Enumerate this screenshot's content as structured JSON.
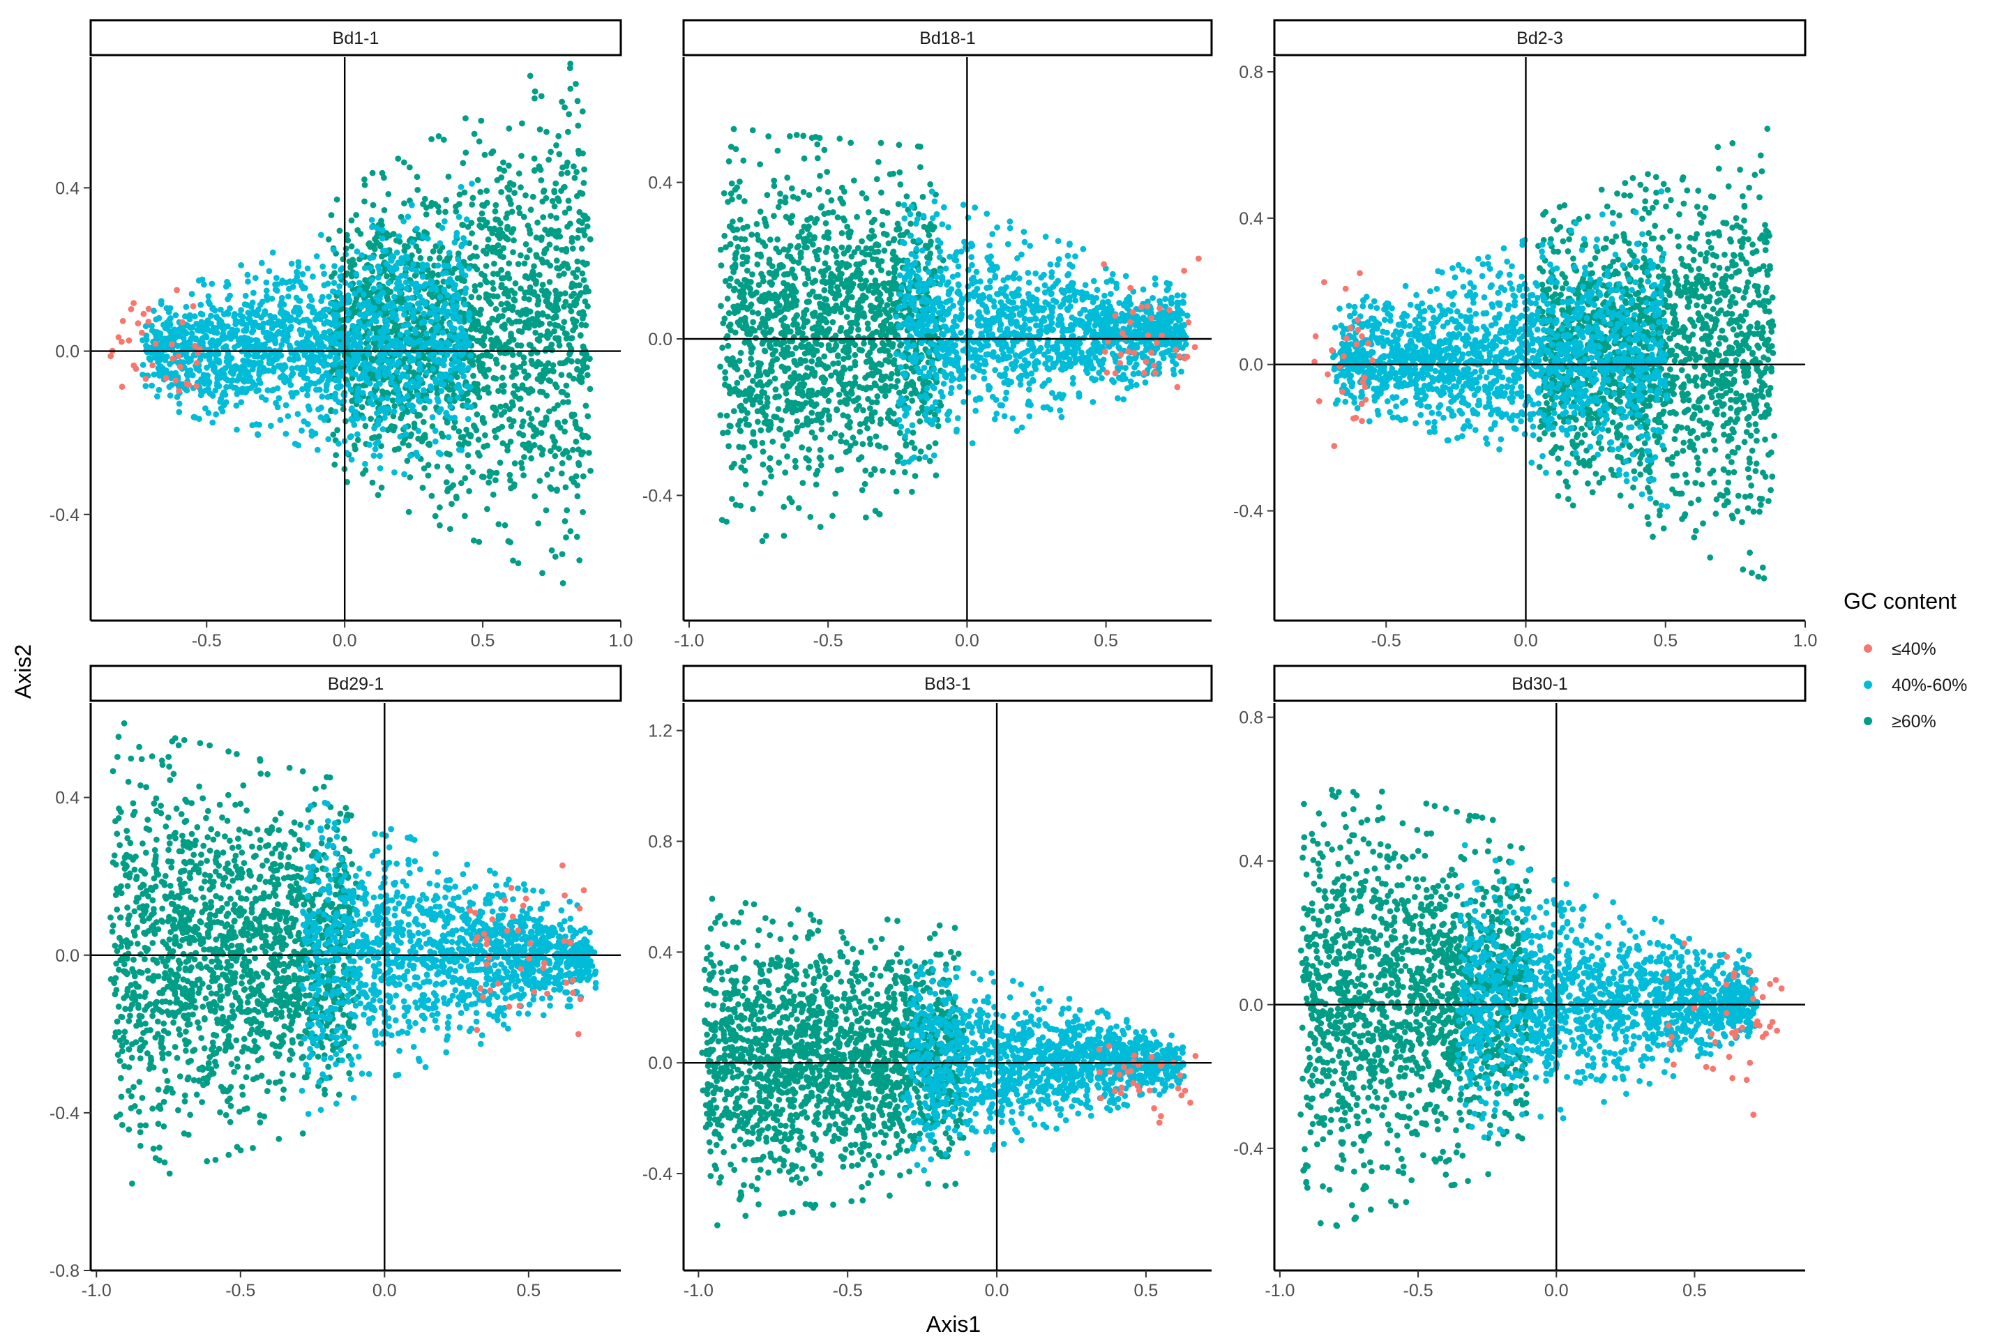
{
  "chart_data": {
    "type": "scatter",
    "layout": "faceted 2x3",
    "xlabel": "Axis1",
    "ylabel": "Axis2",
    "legend": {
      "title": "GC content",
      "position": "right",
      "entries": [
        {
          "label": "≤40%",
          "color": "#F8766D"
        },
        {
          "label": "40%-60%",
          "color": "#00BCD8"
        },
        {
          "label": "≥60%",
          "color": "#009E87"
        }
      ]
    },
    "panels": [
      {
        "title": "Bd1-1",
        "xlim": [
          -0.92,
          1.0
        ],
        "ylim": [
          -0.66,
          0.72
        ],
        "xticks": [
          -0.5,
          0.0,
          0.5,
          1.0
        ],
        "xtick_labels": [
          "-0.5",
          "0.0",
          "0.5",
          "1.0"
        ],
        "yticks": [
          -0.4,
          0.0,
          0.4
        ],
        "ytick_labels": [
          "-0.4",
          "0.0",
          "0.4"
        ],
        "clusters": [
          {
            "series": "≥60%",
            "x_range": [
              -0.05,
              0.88
            ],
            "y_at_left": [
              -0.28,
              0.34
            ],
            "y_at_right": [
              -0.55,
              0.7
            ],
            "density": 1.4
          },
          {
            "series": "40%-60%",
            "x_range": [
              -0.72,
              0.45
            ],
            "y_at_left": [
              -0.12,
              0.12
            ],
            "y_at_right": [
              -0.32,
              0.38
            ],
            "density": 1.0
          },
          {
            "series": "≤40%",
            "x_range": [
              -0.84,
              -0.52
            ],
            "y_at_left": [
              -0.14,
              0.18
            ],
            "y_at_right": [
              -0.2,
              0.2
            ],
            "density": 0.05
          }
        ]
      },
      {
        "title": "Bd18-1",
        "xlim": [
          -1.02,
          0.88
        ],
        "ylim": [
          -0.72,
          0.72
        ],
        "xticks": [
          -1.0,
          -0.5,
          0.0,
          0.5
        ],
        "xtick_labels": [
          "-1.0",
          "-0.5",
          "0.0",
          "0.5"
        ],
        "yticks": [
          -0.4,
          0.0,
          0.4
        ],
        "ytick_labels": [
          "-0.4",
          "0.0",
          "0.4"
        ],
        "clusters": [
          {
            "series": "≥60%",
            "x_range": [
              -0.88,
              -0.1
            ],
            "y_at_left": [
              -0.5,
              0.5
            ],
            "y_at_right": [
              -0.38,
              0.45
            ],
            "density": 1.4
          },
          {
            "series": "40%-60%",
            "x_range": [
              -0.25,
              0.78
            ],
            "y_at_left": [
              -0.3,
              0.38
            ],
            "y_at_right": [
              -0.1,
              0.12
            ],
            "density": 1.0
          },
          {
            "series": "≤40%",
            "x_range": [
              0.5,
              0.84
            ],
            "y_at_left": [
              -0.18,
              0.2
            ],
            "y_at_right": [
              -0.22,
              0.22
            ],
            "density": 0.05
          }
        ]
      },
      {
        "title": "Bd2-3",
        "xlim": [
          -0.9,
          1.0
        ],
        "ylim": [
          -0.7,
          0.84
        ],
        "xticks": [
          -0.5,
          0.0,
          0.5,
          1.0
        ],
        "xtick_labels": [
          "-0.5",
          "0.0",
          "0.5",
          "1.0"
        ],
        "yticks": [
          -0.4,
          0.0,
          0.4,
          0.8
        ],
        "ytick_labels": [
          "-0.4",
          "0.0",
          "0.4",
          "0.8"
        ],
        "clusters": [
          {
            "series": "≥60%",
            "x_range": [
              0.05,
              0.88
            ],
            "y_at_left": [
              -0.32,
              0.38
            ],
            "y_at_right": [
              -0.55,
              0.6
            ],
            "density": 1.4
          },
          {
            "series": "40%-60%",
            "x_range": [
              -0.68,
              0.5
            ],
            "y_at_left": [
              -0.12,
              0.14
            ],
            "y_at_right": [
              -0.36,
              0.44
            ],
            "density": 1.0
          },
          {
            "series": "≤40%",
            "x_range": [
              -0.76,
              -0.55
            ],
            "y_at_left": [
              -0.2,
              0.2
            ],
            "y_at_right": [
              -0.22,
              0.24
            ],
            "density": 0.05
          }
        ]
      },
      {
        "title": "Bd29-1",
        "xlim": [
          -1.02,
          0.82
        ],
        "ylim": [
          -0.8,
          0.64
        ],
        "xticks": [
          -1.0,
          -0.5,
          0.0,
          0.5
        ],
        "xtick_labels": [
          "-1.0",
          "-0.5",
          "0.0",
          "0.5"
        ],
        "yticks": [
          -0.8,
          -0.4,
          0.0,
          0.4
        ],
        "ytick_labels": [
          "-0.8",
          "-0.4",
          "0.0",
          "0.4"
        ],
        "clusters": [
          {
            "series": "≥60%",
            "x_range": [
              -0.94,
              -0.1
            ],
            "y_at_left": [
              -0.55,
              0.55
            ],
            "y_at_right": [
              -0.38,
              0.4
            ],
            "density": 1.4
          },
          {
            "series": "40%-60%",
            "x_range": [
              -0.28,
              0.72
            ],
            "y_at_left": [
              -0.38,
              0.38
            ],
            "y_at_right": [
              -0.1,
              0.1
            ],
            "density": 1.0
          },
          {
            "series": "≤40%",
            "x_range": [
              0.3,
              0.7
            ],
            "y_at_left": [
              -0.22,
              0.24
            ],
            "y_at_right": [
              -0.22,
              0.26
            ],
            "density": 0.05
          }
        ]
      },
      {
        "title": "Bd3-1",
        "xlim": [
          -1.05,
          0.72
        ],
        "ylim": [
          -0.75,
          1.3
        ],
        "xticks": [
          -1.0,
          -0.5,
          0.0,
          0.5
        ],
        "xtick_labels": [
          "-1.0",
          "-0.5",
          "0.0",
          "0.5"
        ],
        "yticks": [
          -0.4,
          0.0,
          0.4,
          0.8,
          1.2
        ],
        "ytick_labels": [
          "-0.4",
          "0.0",
          "0.4",
          "0.8",
          "1.2"
        ],
        "clusters": [
          {
            "series": "≥60%",
            "x_range": [
              -0.98,
              -0.12
            ],
            "y_at_left": [
              -0.55,
              0.55
            ],
            "y_at_right": [
              -0.4,
              0.45
            ],
            "density": 1.4
          },
          {
            "series": "40%-60%",
            "x_range": [
              -0.3,
              0.62
            ],
            "y_at_left": [
              -0.38,
              0.4
            ],
            "y_at_right": [
              -0.08,
              0.08
            ],
            "density": 1.0
          },
          {
            "series": "≤40%",
            "x_range": [
              0.35,
              0.66
            ],
            "y_at_left": [
              -0.2,
              0.08
            ],
            "y_at_right": [
              -0.2,
              0.1
            ],
            "density": 0.04
          }
        ]
      },
      {
        "title": "Bd30-1",
        "xlim": [
          -1.02,
          0.9
        ],
        "ylim": [
          -0.74,
          0.84
        ],
        "xticks": [
          -1.0,
          -0.5,
          0.0,
          0.5
        ],
        "xtick_labels": [
          "-1.0",
          "-0.5",
          "0.0",
          "0.5"
        ],
        "yticks": [
          -0.4,
          0.0,
          0.4,
          0.8
        ],
        "ytick_labels": [
          "-0.4",
          "0.0",
          "0.4",
          "0.8"
        ],
        "clusters": [
          {
            "series": "≥60%",
            "x_range": [
              -0.92,
              -0.1
            ],
            "y_at_left": [
              -0.6,
              0.6
            ],
            "y_at_right": [
              -0.4,
              0.45
            ],
            "density": 1.4
          },
          {
            "series": "40%-60%",
            "x_range": [
              -0.35,
              0.72
            ],
            "y_at_left": [
              -0.4,
              0.42
            ],
            "y_at_right": [
              -0.1,
              0.12
            ],
            "density": 1.0
          },
          {
            "series": "≤40%",
            "x_range": [
              0.4,
              0.82
            ],
            "y_at_left": [
              -0.3,
              0.16
            ],
            "y_at_right": [
              -0.28,
              0.14
            ],
            "density": 0.05
          }
        ]
      }
    ]
  }
}
